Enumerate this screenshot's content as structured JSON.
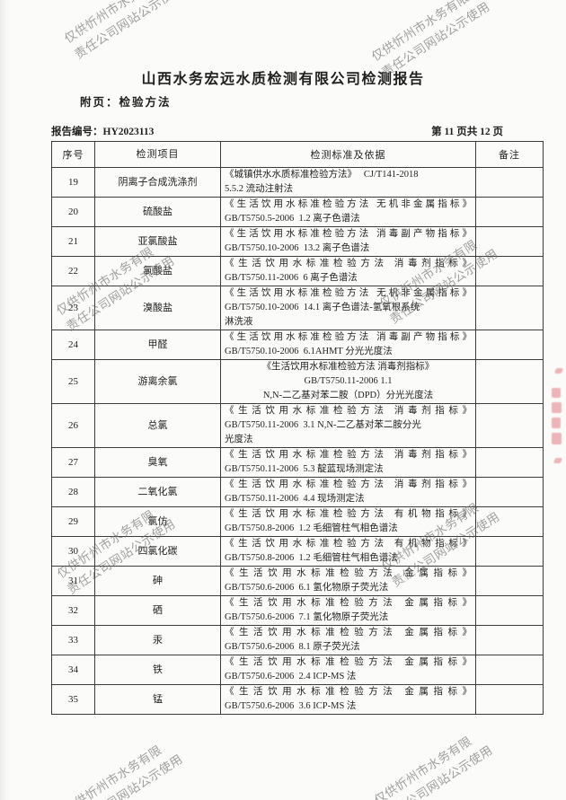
{
  "page": {
    "title": "山西水务宏远水质检测有限公司检测报告",
    "subtitle": "附页：检验方法",
    "report_no": "报告编号：HY2023113",
    "page_indicator": "第 11 页共 12 页"
  },
  "watermark": {
    "line1": "仅供忻州市水务有限",
    "line2": "责任公司网站公示使用",
    "color": "#686868"
  },
  "seal": {
    "color": "#d8545c"
  },
  "table": {
    "headers": [
      "序号",
      "检测项目",
      "检测标准及依据",
      "备注"
    ],
    "rows": [
      {
        "no": "19",
        "item": "阴离子合成洗涤剂",
        "standard_lines": [
          "《城镇供水水质标准检验方法》   CJ/T141-2018",
          "5.5.2 流动注射法"
        ],
        "remark": ""
      },
      {
        "no": "20",
        "item": "硫酸盐",
        "standard_lines": [
          "《生活饮用水标准检验方法 无机非金属指标》",
          "GB/T5750.5-2006  1.2 离子色谱法"
        ],
        "remark": ""
      },
      {
        "no": "21",
        "item": "亚氯酸盐",
        "standard_lines": [
          "《生活饮用水标准检验方法 消毒副产物指标》",
          "GB/T5750.10-2006  13.2 离子色谱法"
        ],
        "remark": ""
      },
      {
        "no": "22",
        "item": "氯酸盐",
        "standard_lines": [
          "《生活饮用水标准检验方法 消毒剂指标》",
          "GB/T5750.11-2006  6 离子色谱法"
        ],
        "remark": ""
      },
      {
        "no": "23",
        "item": "溴酸盐",
        "standard_lines": [
          "《生活饮用水标准检验方法 无机非金属指标》",
          "GB/T5750.10-2006  14.1 离子色谱法-氢氧根系统",
          "淋洗液"
        ],
        "remark": ""
      },
      {
        "no": "24",
        "item": "甲醛",
        "standard_lines": [
          "《生活饮用水标准检验方法 消毒副产物指标》",
          "GB/T5750.10-2006  6.1AHMT 分光光度法"
        ],
        "remark": ""
      },
      {
        "no": "25",
        "item": "游离余氯",
        "standard_lines": [
          "《生活饮用水标准检验方法 消毒剂指标》",
          "GB/T5750.11-2006 1.1",
          "N,N-二乙基对苯二胺（DPD）分光光度法"
        ],
        "remark": ""
      },
      {
        "no": "26",
        "item": "总氯",
        "standard_lines": [
          "《生活饮用水标准检验方法 消毒剂指标》",
          "GB/T5750.11-2006  3.1 N,N-二乙基对苯二胺分光",
          "光度法"
        ],
        "remark": ""
      },
      {
        "no": "27",
        "item": "臭氧",
        "standard_lines": [
          "《生活饮用水标准检验方法 消毒剂指标》",
          "GB/T5750.11-2006  5.3 靛蓝现场测定法"
        ],
        "remark": ""
      },
      {
        "no": "28",
        "item": "二氧化氯",
        "standard_lines": [
          "《生活饮用水标准检验方法 消毒剂指标》",
          "GB/T5750.11-2006  4.4 现场测定法"
        ],
        "remark": ""
      },
      {
        "no": "29",
        "item": "氯仿",
        "standard_lines": [
          "《生活饮用水标准检验方法 有机物指标》",
          "GB/T5750.8-2006  1.2 毛细管柱气相色谱法"
        ],
        "remark": ""
      },
      {
        "no": "30",
        "item": "四氯化碳",
        "standard_lines": [
          "《生活饮用水标准检验方法 有机物指标》",
          "GB/T5750.8-2006  1.2 毛细管柱气相色谱法"
        ],
        "remark": ""
      },
      {
        "no": "31",
        "item": "砷",
        "standard_lines": [
          "《生活饮用水标准检验方法 金属指标》",
          "GB/T5750.6-2006  6.1 氢化物原子荧光法"
        ],
        "remark": ""
      },
      {
        "no": "32",
        "item": "硒",
        "standard_lines": [
          "《生活饮用水标准检验方法 金属指标》",
          "GB/T5750.6-2006  7.1 氢化物原子荧光法"
        ],
        "remark": ""
      },
      {
        "no": "33",
        "item": "汞",
        "standard_lines": [
          "《生活饮用水标准检验方法 金属指标》",
          "GB/T5750.6-2006  8.1 原子荧光法"
        ],
        "remark": ""
      },
      {
        "no": "34",
        "item": "铁",
        "standard_lines": [
          "《生活饮用水标准检验方法 金属指标》",
          "GB/T5750.6-2006  2.4 ICP-MS 法"
        ],
        "remark": ""
      },
      {
        "no": "35",
        "item": "锰",
        "standard_lines": [
          "《生活饮用水标准检验方法 金属指标》",
          "GB/T5750.6-2006  3.6 ICP-MS 法"
        ],
        "remark": ""
      }
    ]
  }
}
